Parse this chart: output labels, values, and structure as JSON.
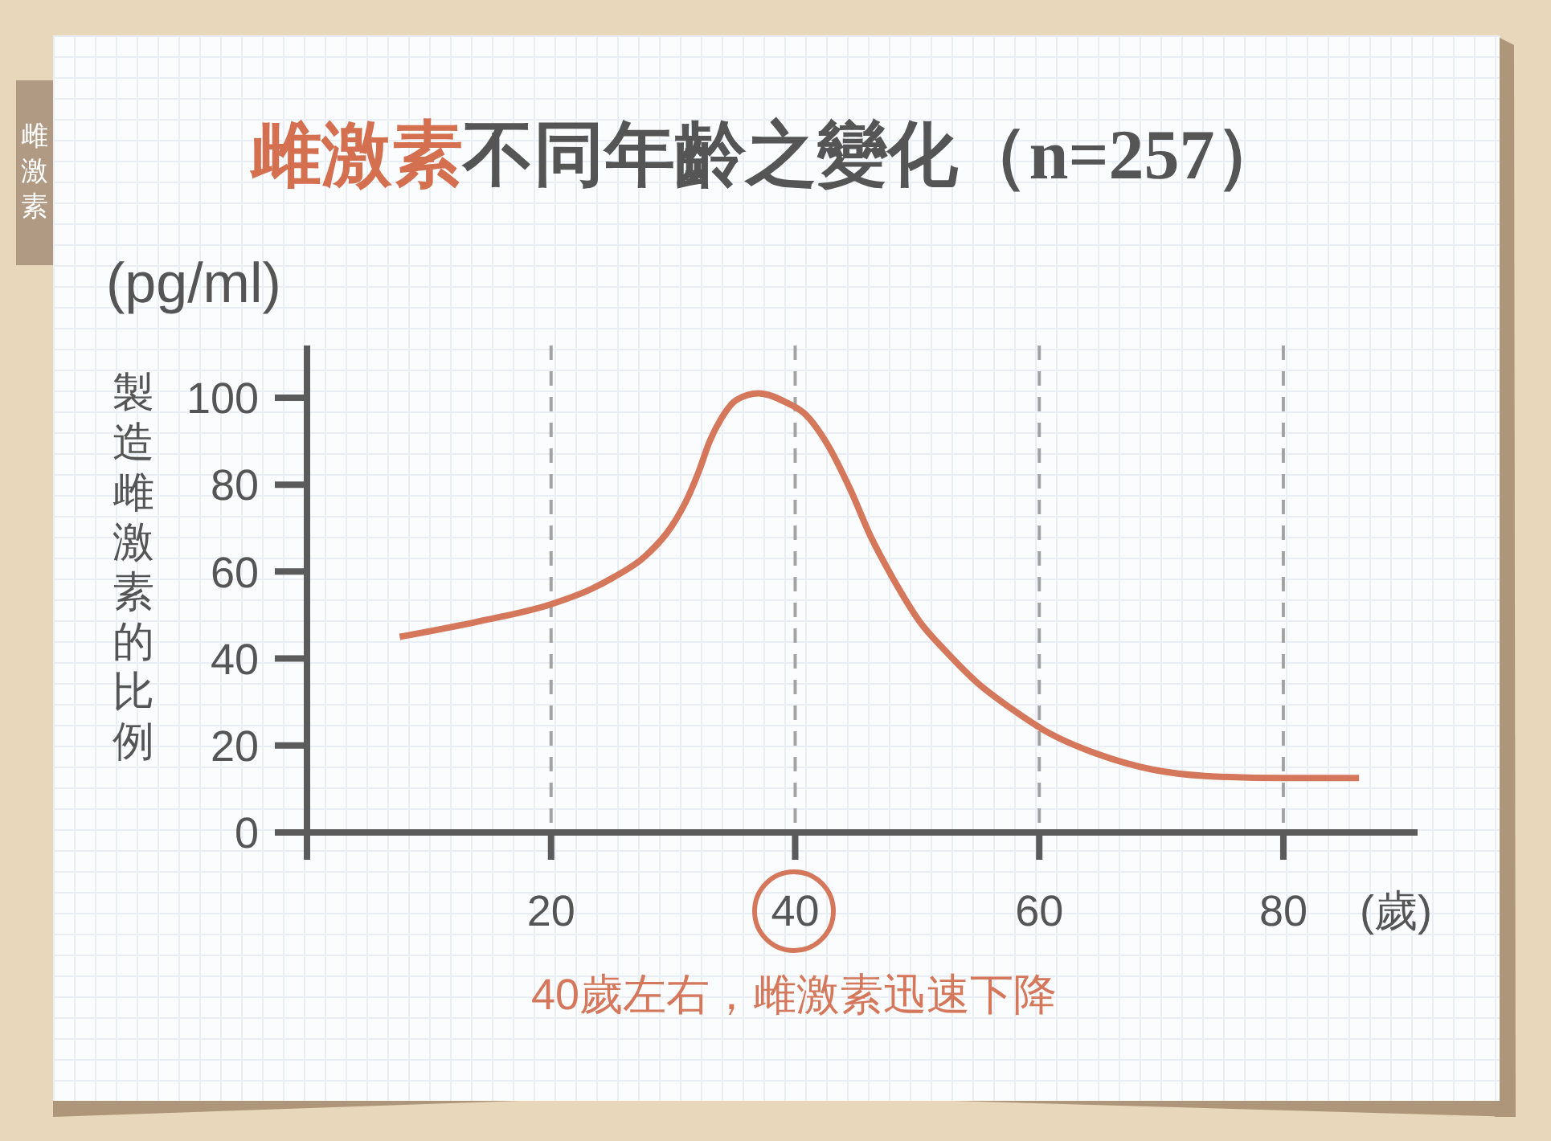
{
  "chart_data": {
    "type": "line",
    "title": "雌激素不同年齡之變化（n=257）",
    "xlabel": "(歲)",
    "ylabel": "製造雌激素的比例",
    "x": [
      7.6,
      14,
      20,
      23.3,
      25,
      27.7,
      29.9,
      31.2,
      32.1,
      33,
      33.9,
      35.2,
      37,
      39.2,
      40.9,
      42.7,
      44.5,
      46.2,
      48,
      50.2,
      52.4,
      55.1,
      57.7,
      60.4,
      64.8,
      69.2,
      73.6,
      80,
      86.2
    ],
    "values": [
      45,
      48.5,
      52.5,
      56,
      58.5,
      63.5,
      70.5,
      77,
      83,
      90,
      95,
      99.5,
      101,
      99,
      96,
      89,
      79,
      68,
      58.5,
      48.5,
      41.5,
      34,
      28.5,
      23.5,
      18,
      14.5,
      13,
      12.5,
      12.5
    ],
    "color": "#d4775b",
    "xlim": [
      0,
      91
    ],
    "ylim": [
      0,
      112
    ],
    "xticks": [
      {
        "value": 0,
        "label": null
      },
      20,
      40,
      60,
      80
    ],
    "yticks": [
      0,
      20,
      40,
      60,
      80,
      100
    ],
    "grid": "x",
    "marker": "none",
    "line_style": "solid",
    "annotations": [
      "雌激素",
      "(pg/ml)",
      "40歲左右，雌激素迅速下降"
    ]
  }
}
